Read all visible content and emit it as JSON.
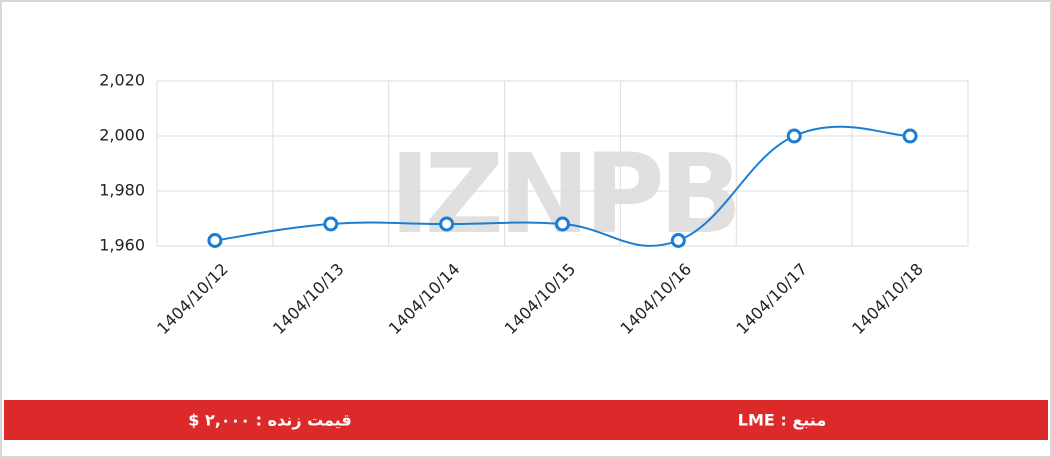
{
  "chart_data": {
    "type": "line",
    "categories": [
      "1404/10/12",
      "1404/10/13",
      "1404/10/14",
      "1404/10/15",
      "1404/10/16",
      "1404/10/17",
      "1404/10/18"
    ],
    "values": [
      1962,
      1968,
      1968,
      1968,
      1962,
      2000,
      2000
    ],
    "color": "#1a7fd4",
    "ylim": [
      1960,
      2020
    ],
    "yticks": [
      {
        "value": 1960,
        "label": "1,960"
      },
      {
        "value": 1980,
        "label": "1,980"
      },
      {
        "value": 2000,
        "label": "2,000"
      },
      {
        "value": 2020,
        "label": "2,020"
      }
    ],
    "grid": true,
    "watermark": "IZNPB"
  },
  "footer": {
    "price": "قیمت زنده : ۲,۰۰۰ $",
    "source": "منبع : LME"
  }
}
